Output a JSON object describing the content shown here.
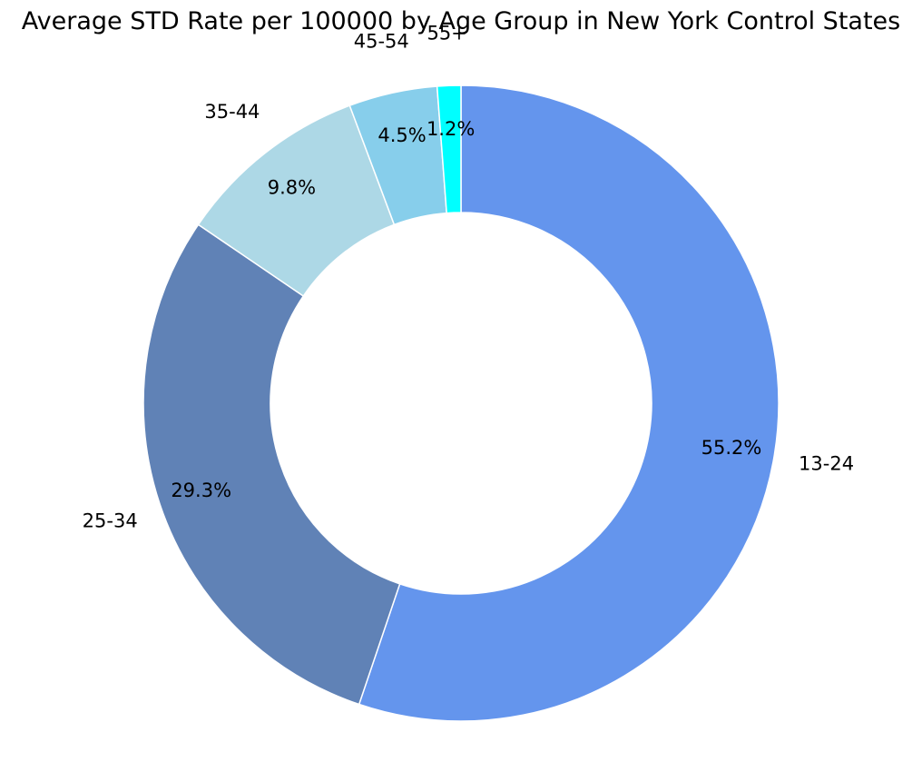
{
  "chart_data": {
    "type": "pie",
    "variant": "donut",
    "title": "Average STD Rate per 100000 by Age Group in New York Control States",
    "direction": "clockwise",
    "start": "top",
    "categories": [
      "13-24",
      "25-34",
      "35-44",
      "45-54",
      "55+"
    ],
    "values": [
      55.2,
      29.3,
      9.8,
      4.5,
      1.2
    ],
    "percent_labels": [
      "55.2%",
      "29.3%",
      "9.8%",
      "4.5%",
      "1.2%"
    ],
    "colors": [
      "#6495ED",
      "#6082B6",
      "#ADD8E6",
      "#87CEEB",
      "#00FFFF"
    ],
    "edge_color": "#FFFFFF",
    "legend": "none"
  }
}
